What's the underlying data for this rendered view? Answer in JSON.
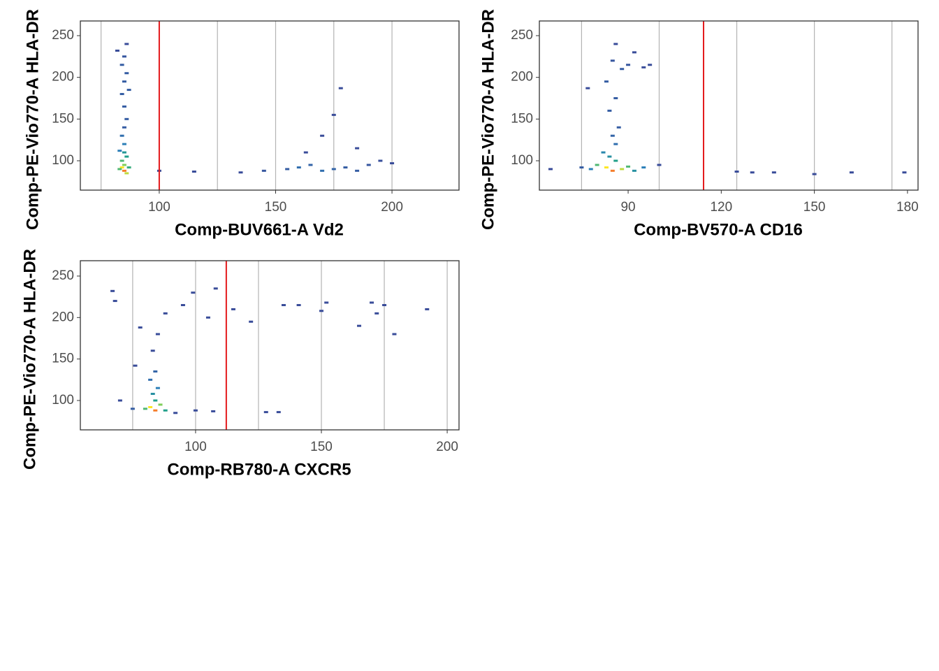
{
  "chart_data": [
    {
      "type": "density",
      "xlabel": "Comp-BUV661-A Vd2",
      "ylabel": "Comp-PE-Vio770-A HLA-DR",
      "xlim": [
        66.1,
        228.8
      ],
      "ylim": [
        64.8,
        267.6
      ],
      "xticks": [
        100,
        150,
        200
      ],
      "yticks": [
        100,
        150,
        200,
        250
      ],
      "grid_x": [
        75,
        100,
        125,
        150,
        175,
        200
      ],
      "threshold": 100,
      "threshold_color": "#e41a1c",
      "palette": [
        "#3d3b8e",
        "#2c7fb8",
        "#21a08a",
        "#7fcf5a",
        "#fde725",
        "#f57d2a"
      ],
      "x": [
        85,
        84,
        86,
        85,
        84,
        86,
        85,
        83,
        87,
        85,
        84,
        85,
        86,
        85,
        84,
        85,
        86,
        84,
        85,
        86,
        82,
        87,
        83,
        100,
        115,
        135,
        145,
        155,
        160,
        165,
        170,
        175,
        180,
        185,
        190,
        195,
        200,
        178,
        175,
        163,
        185,
        170
      ],
      "y": [
        88,
        92,
        85,
        95,
        100,
        105,
        110,
        90,
        92,
        120,
        130,
        140,
        150,
        165,
        180,
        195,
        205,
        215,
        225,
        240,
        232,
        185,
        112,
        88,
        87,
        86,
        88,
        90,
        92,
        95,
        88,
        90,
        92,
        88,
        95,
        100,
        97,
        187,
        155,
        110,
        115,
        130
      ],
      "density": [
        1.0,
        0.8,
        0.7,
        0.6,
        0.5,
        0.4,
        0.35,
        0.5,
        0.45,
        0.2,
        0.15,
        0.1,
        0.1,
        0.1,
        0.1,
        0.1,
        0.1,
        0.1,
        0.08,
        0.05,
        0.05,
        0.1,
        0.2,
        0.05,
        0.05,
        0.05,
        0.08,
        0.1,
        0.15,
        0.12,
        0.15,
        0.12,
        0.1,
        0.1,
        0.08,
        0.06,
        0.05,
        0.05,
        0.05,
        0.05,
        0.05,
        0.05
      ]
    },
    {
      "type": "density",
      "xlabel": "Comp-BV570-A CD16",
      "ylabel": "Comp-PE-Vio770-A HLA-DR",
      "xlim": [
        61.4,
        183.4
      ],
      "ylim": [
        64.8,
        267.6
      ],
      "xticks": [
        90,
        120,
        150,
        180
      ],
      "yticks": [
        100,
        150,
        200,
        250
      ],
      "grid_x": [
        75,
        100,
        125,
        150,
        175
      ],
      "threshold": 114.3,
      "threshold_color": "#e41a1c",
      "palette": [
        "#3d3b8e",
        "#2c7fb8",
        "#21a08a",
        "#7fcf5a",
        "#fde725",
        "#f57d2a"
      ],
      "x": [
        85,
        83,
        88,
        80,
        90,
        86,
        84,
        82,
        92,
        95,
        78,
        75,
        100,
        65,
        86,
        85,
        87,
        84,
        86,
        83,
        88,
        85,
        90,
        95,
        97,
        86,
        92,
        77,
        125,
        130,
        137,
        150,
        162,
        179
      ],
      "y": [
        88,
        92,
        90,
        95,
        93,
        100,
        105,
        110,
        88,
        92,
        90,
        92,
        95,
        90,
        120,
        130,
        140,
        160,
        175,
        195,
        210,
        220,
        215,
        212,
        215,
        240,
        230,
        187,
        87,
        86,
        86,
        84,
        86,
        86
      ],
      "density": [
        1.0,
        0.8,
        0.7,
        0.5,
        0.5,
        0.4,
        0.3,
        0.25,
        0.3,
        0.2,
        0.2,
        0.1,
        0.05,
        0.05,
        0.15,
        0.12,
        0.1,
        0.1,
        0.1,
        0.1,
        0.1,
        0.08,
        0.08,
        0.05,
        0.05,
        0.05,
        0.05,
        0.05,
        0.05,
        0.05,
        0.05,
        0.05,
        0.05,
        0.05
      ]
    },
    {
      "type": "density",
      "xlabel": "Comp-RB780-A CXCR5",
      "ylabel": "Comp-PE-Vio770-A HLA-DR",
      "xlim": [
        54.2,
        204.7
      ],
      "ylim": [
        64.6,
        268.5
      ],
      "xticks": [
        100,
        150,
        200
      ],
      "yticks": [
        100,
        150,
        200,
        250
      ],
      "grid_x": [
        75,
        100,
        125,
        150,
        175,
        200
      ],
      "threshold": 112.2,
      "threshold_color": "#e41a1c",
      "palette": [
        "#3d3b8e",
        "#2c7fb8",
        "#21a08a",
        "#7fcf5a",
        "#fde725",
        "#f57d2a"
      ],
      "x": [
        84,
        82,
        86,
        80,
        88,
        84,
        83,
        85,
        82,
        84,
        76,
        83,
        85,
        78,
        70,
        75,
        92,
        100,
        107,
        128,
        133,
        67,
        68,
        88,
        95,
        99,
        105,
        115,
        122,
        135,
        141,
        150,
        152,
        170,
        172,
        175,
        192,
        179,
        165,
        108
      ],
      "y": [
        88,
        92,
        95,
        90,
        88,
        100,
        108,
        115,
        125,
        135,
        142,
        160,
        180,
        188,
        100,
        90,
        85,
        88,
        87,
        86,
        86,
        232,
        220,
        205,
        215,
        230,
        200,
        210,
        195,
        215,
        215,
        208,
        218,
        218,
        205,
        215,
        210,
        180,
        190,
        235
      ],
      "density": [
        1.0,
        0.8,
        0.6,
        0.5,
        0.4,
        0.4,
        0.3,
        0.2,
        0.15,
        0.12,
        0.05,
        0.05,
        0.05,
        0.05,
        0.05,
        0.1,
        0.05,
        0.05,
        0.05,
        0.05,
        0.05,
        0.05,
        0.05,
        0.05,
        0.05,
        0.05,
        0.05,
        0.05,
        0.05,
        0.05,
        0.05,
        0.05,
        0.05,
        0.05,
        0.05,
        0.05,
        0.05,
        0.05,
        0.05,
        0.05
      ]
    }
  ]
}
